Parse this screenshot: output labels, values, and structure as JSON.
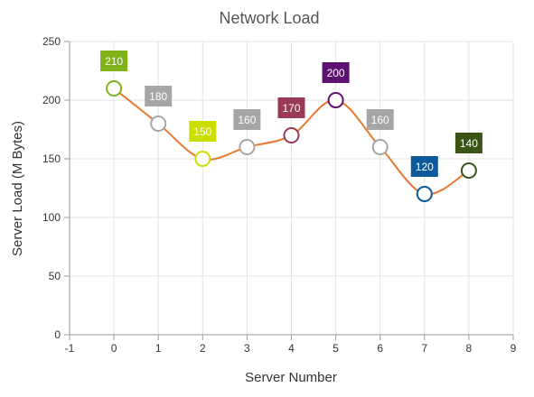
{
  "chart_data": {
    "type": "line",
    "title": "Network Load",
    "xlabel": "Server Number",
    "ylabel": "Server Load (M Bytes)",
    "xlim": [
      -1,
      9
    ],
    "ylim": [
      0,
      250
    ],
    "x_ticks": [
      -1,
      0,
      1,
      2,
      3,
      4,
      5,
      6,
      7,
      8,
      9
    ],
    "y_ticks": [
      0,
      50,
      100,
      150,
      200,
      250
    ],
    "grid": true,
    "line_color": "#e8772e",
    "series": [
      {
        "x": [
          0,
          1,
          2,
          3,
          4,
          5,
          6,
          7,
          8
        ],
        "values": [
          210,
          180,
          150,
          160,
          170,
          200,
          160,
          120,
          140
        ],
        "point_colors": [
          "#82b21a",
          "#a6a6a6",
          "#ccdd00",
          "#a6a6a6",
          "#9b3a57",
          "#5d1170",
          "#a6a6a6",
          "#0d5a9a",
          "#3a5417"
        ]
      }
    ]
  }
}
